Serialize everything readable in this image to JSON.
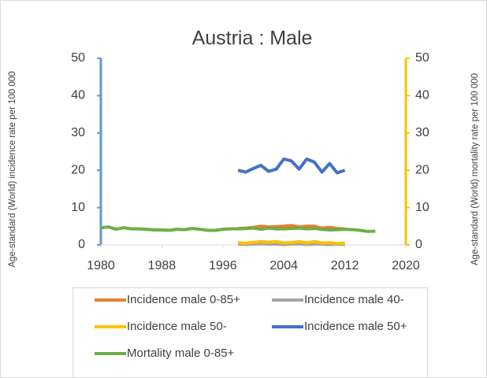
{
  "chart_data": {
    "type": "line",
    "title": "Austria : Male",
    "ylabel": "Age-standard (World) incidence rate per 100 000",
    "y2label": "Age-standard (World) mortality rate per 100 000",
    "xlim": [
      1980,
      2020
    ],
    "xticks": [
      1980,
      1988,
      1996,
      2004,
      2012,
      2020
    ],
    "ylim": [
      0,
      50
    ],
    "yticks": [
      0,
      10,
      20,
      30,
      40,
      50
    ],
    "y2lim": [
      0,
      50
    ],
    "y2ticks": [
      0,
      10,
      20,
      30,
      40,
      50
    ],
    "yaxis_color": "#5b9bd5",
    "y2axis_color": "#ffc000",
    "series": [
      {
        "name": "Incidence male 0-85+",
        "color": "#ed7d31",
        "x": [
          1998,
          1999,
          2000,
          2001,
          2002,
          2003,
          2004,
          2005,
          2006,
          2007,
          2008,
          2009,
          2010,
          2011,
          2012
        ],
        "values": [
          4.4,
          4.5,
          4.7,
          5.0,
          4.8,
          4.9,
          5.0,
          5.2,
          4.8,
          5.0,
          5.0,
          4.5,
          4.7,
          4.4,
          4.3
        ]
      },
      {
        "name": "Incidence male 40-",
        "color": "#a5a5a5",
        "x": [
          1998,
          1999,
          2000,
          2001,
          2002,
          2003,
          2004,
          2005,
          2006,
          2007,
          2008,
          2009,
          2010,
          2011,
          2012
        ],
        "values": [
          0.2,
          0.1,
          0.2,
          0.3,
          0.2,
          0.2,
          0.1,
          0.2,
          0.3,
          0.1,
          0.2,
          0.2,
          0.1,
          0.2,
          0.1
        ]
      },
      {
        "name": "Incidence male 50-",
        "color": "#ffc000",
        "x": [
          1998,
          1999,
          2000,
          2001,
          2002,
          2003,
          2004,
          2005,
          2006,
          2007,
          2008,
          2009,
          2010,
          2011,
          2012
        ],
        "values": [
          0.6,
          0.4,
          0.7,
          0.9,
          0.7,
          0.9,
          0.5,
          0.6,
          0.9,
          0.5,
          0.9,
          0.5,
          0.6,
          0.4,
          0.5
        ]
      },
      {
        "name": "Incidence male 50+",
        "color": "#4472c4",
        "x": [
          1998,
          1999,
          2000,
          2001,
          2002,
          2003,
          2004,
          2005,
          2006,
          2007,
          2008,
          2009,
          2010,
          2011,
          2012
        ],
        "values": [
          20,
          19.5,
          20.5,
          21.3,
          19.7,
          20.3,
          23,
          22.5,
          20.3,
          23,
          22.2,
          19.5,
          21.8,
          19.3,
          20
        ]
      },
      {
        "name": "Mortality male 0-85+",
        "color": "#70ad47",
        "axis": "y2",
        "x": [
          1980,
          1981,
          1982,
          1983,
          1984,
          1985,
          1986,
          1987,
          1988,
          1989,
          1990,
          1991,
          1992,
          1993,
          1994,
          1995,
          1996,
          1997,
          1998,
          1999,
          2000,
          2001,
          2002,
          2003,
          2004,
          2005,
          2006,
          2007,
          2008,
          2009,
          2010,
          2011,
          2012,
          2013,
          2014,
          2015,
          2016
        ],
        "values": [
          4.6,
          4.8,
          4.2,
          4.6,
          4.3,
          4.3,
          4.2,
          4.0,
          4.0,
          3.9,
          4.2,
          4.1,
          4.4,
          4.2,
          3.9,
          3.9,
          4.2,
          4.3,
          4.3,
          4.4,
          4.5,
          4.2,
          4.5,
          4.3,
          4.3,
          4.4,
          4.5,
          4.3,
          4.4,
          4.2,
          4.0,
          4.1,
          4.2,
          4.1,
          3.9,
          3.6,
          3.7
        ]
      }
    ]
  }
}
